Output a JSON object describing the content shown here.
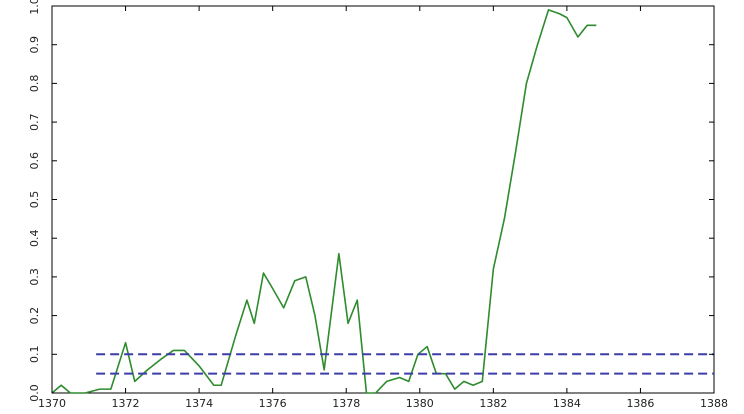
{
  "chart_data": {
    "type": "line",
    "title": "",
    "xlabel": "",
    "ylabel": "",
    "xlim": [
      1370,
      1388
    ],
    "ylim": [
      0,
      1.0
    ],
    "grid": false,
    "legend": "none",
    "x_ticks": [
      1370,
      1372,
      1374,
      1376,
      1378,
      1380,
      1382,
      1384,
      1386,
      1388
    ],
    "y_ticks": [
      0.0,
      0.1,
      0.2,
      0.3,
      0.4,
      0.5,
      0.6,
      0.7,
      0.8,
      0.9,
      1.0
    ],
    "x_tick_labels": [
      "1370",
      "1372",
      "1374",
      "1376",
      "1378",
      "1380",
      "1382",
      "1384",
      "1386",
      "1388"
    ],
    "y_tick_labels": [
      "0.0",
      "0.1",
      "0.2",
      "0.3",
      "0.4",
      "0.5",
      "0.6",
      "0.7",
      "0.8",
      "0.9",
      "1.0"
    ],
    "series": [
      {
        "color": "#2e8b2e",
        "style": "solid",
        "points": [
          [
            1370.0,
            0.0
          ],
          [
            1370.25,
            0.02
          ],
          [
            1370.5,
            0.0
          ],
          [
            1370.9,
            0.0
          ],
          [
            1371.3,
            0.01
          ],
          [
            1371.6,
            0.01
          ],
          [
            1372.0,
            0.13
          ],
          [
            1372.25,
            0.03
          ],
          [
            1372.6,
            0.06
          ],
          [
            1373.0,
            0.09
          ],
          [
            1373.3,
            0.11
          ],
          [
            1373.6,
            0.11
          ],
          [
            1374.0,
            0.07
          ],
          [
            1374.4,
            0.02
          ],
          [
            1374.6,
            0.02
          ],
          [
            1375.0,
            0.15
          ],
          [
            1375.3,
            0.24
          ],
          [
            1375.5,
            0.18
          ],
          [
            1375.75,
            0.31
          ],
          [
            1376.0,
            0.27
          ],
          [
            1376.3,
            0.22
          ],
          [
            1376.6,
            0.29
          ],
          [
            1376.9,
            0.3
          ],
          [
            1377.15,
            0.2
          ],
          [
            1377.4,
            0.06
          ],
          [
            1377.8,
            0.36
          ],
          [
            1378.05,
            0.18
          ],
          [
            1378.3,
            0.24
          ],
          [
            1378.55,
            0.0
          ],
          [
            1378.8,
            0.0
          ],
          [
            1379.1,
            0.03
          ],
          [
            1379.45,
            0.04
          ],
          [
            1379.7,
            0.03
          ],
          [
            1379.95,
            0.1
          ],
          [
            1380.2,
            0.12
          ],
          [
            1380.45,
            0.05
          ],
          [
            1380.7,
            0.05
          ],
          [
            1380.95,
            0.01
          ],
          [
            1381.2,
            0.03
          ],
          [
            1381.45,
            0.02
          ],
          [
            1381.7,
            0.03
          ],
          [
            1382.0,
            0.32
          ],
          [
            1382.3,
            0.45
          ],
          [
            1382.6,
            0.62
          ],
          [
            1382.9,
            0.8
          ],
          [
            1383.2,
            0.9
          ],
          [
            1383.5,
            0.99
          ],
          [
            1383.8,
            0.98
          ],
          [
            1384.0,
            0.97
          ],
          [
            1384.3,
            0.92
          ],
          [
            1384.55,
            0.95
          ],
          [
            1384.8,
            0.95
          ]
        ]
      },
      {
        "color": "#3d3da8",
        "style": "dashed",
        "points": [
          [
            1371.2,
            0.1
          ],
          [
            1388.0,
            0.1
          ]
        ]
      },
      {
        "color": "#3d3da8",
        "style": "dashed",
        "points": [
          [
            1371.2,
            0.05
          ],
          [
            1388.0,
            0.05
          ]
        ]
      }
    ]
  }
}
